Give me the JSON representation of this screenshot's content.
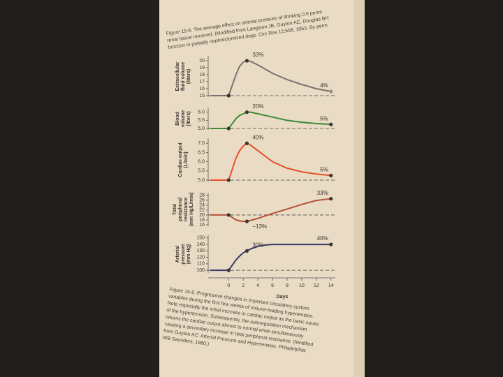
{
  "figure_top_caption": [
    "Figure 15-8. The average effect on arterial pressure of drinking 0.9 perce",
    "renal tissue removed. (Modified from Langston JB, Guyton AC, Douglas BH",
    "function in partially nephrectomized dogs. Circ Res 12:508, 1963. By perm"
  ],
  "chart_data": [
    {
      "type": "line",
      "ylabel": [
        "Extracellular",
        "fluid volume",
        "(liters)"
      ],
      "x": [
        -2.5,
        0,
        0.5,
        1,
        1.5,
        2,
        2.5,
        3,
        4,
        5,
        6,
        8,
        10,
        12,
        14
      ],
      "series": [
        {
          "color": "#7b7170",
          "values": [
            15,
            15,
            16.5,
            18,
            19.2,
            19.8,
            20,
            19.9,
            19.4,
            18.8,
            18.2,
            17.3,
            16.6,
            16.0,
            15.6
          ]
        }
      ],
      "points": [
        {
          "x": 0,
          "y": 15
        },
        {
          "x": 2.5,
          "y": 20,
          "label": "33%"
        },
        {
          "x": 14,
          "y": 15.6,
          "label": "4%"
        }
      ],
      "baseline": 15,
      "xlim": [
        -2.8,
        14.6
      ],
      "ylim": [
        15,
        20.5
      ],
      "yticks": [
        15,
        16,
        17,
        18,
        19,
        20
      ]
    },
    {
      "type": "line",
      "ylabel": [
        "Blood",
        "volume",
        "(liters)"
      ],
      "x": [
        -2.5,
        0,
        0.5,
        1,
        1.5,
        2,
        2.5,
        3,
        4,
        5,
        6,
        8,
        10,
        12,
        14
      ],
      "series": [
        {
          "color": "#3d8a37",
          "values": [
            5,
            5,
            5.3,
            5.6,
            5.8,
            5.9,
            6.0,
            6.0,
            5.9,
            5.8,
            5.7,
            5.5,
            5.38,
            5.3,
            5.25
          ]
        }
      ],
      "points": [
        {
          "x": 0,
          "y": 5
        },
        {
          "x": 2.5,
          "y": 6.0,
          "label": "20%"
        },
        {
          "x": 14,
          "y": 5.25,
          "label": "5%"
        }
      ],
      "baseline": 5,
      "xlim": [
        -2.8,
        14.6
      ],
      "ylim": [
        5,
        6.2
      ],
      "yticks": [
        {
          "value": 5,
          "label": "5.0"
        },
        5.5,
        {
          "value": 6,
          "label": "6.0"
        }
      ]
    },
    {
      "type": "line",
      "ylabel": [
        "Cardiac output",
        "(L/min)"
      ],
      "x": [
        -2.5,
        0,
        0.5,
        1,
        1.5,
        2,
        2.5,
        3,
        4,
        5,
        6,
        8,
        10,
        12,
        14
      ],
      "series": [
        {
          "color": "#e2512b",
          "values": [
            5,
            5,
            5.6,
            6.2,
            6.6,
            6.85,
            7.0,
            6.9,
            6.6,
            6.3,
            6.0,
            5.65,
            5.45,
            5.33,
            5.25
          ]
        }
      ],
      "points": [
        {
          "x": 0,
          "y": 5
        },
        {
          "x": 2.5,
          "y": 7.0,
          "label": "40%"
        },
        {
          "x": 14,
          "y": 5.25,
          "label": "5%"
        }
      ],
      "baseline": 5,
      "xlim": [
        -2.8,
        14.6
      ],
      "ylim": [
        5,
        7.2
      ],
      "yticks": [
        {
          "value": 5,
          "label": "5.0"
        },
        5.5,
        {
          "value": 6,
          "label": "6.0"
        },
        6.5,
        {
          "value": 7,
          "label": "7.0"
        }
      ]
    },
    {
      "type": "line",
      "ylabel": [
        "Total",
        "peripheral",
        "resistance",
        "(mm Hg/L/min)"
      ],
      "x": [
        -2.5,
        0,
        0.5,
        1,
        1.5,
        2,
        2.5,
        3,
        4,
        5,
        6,
        8,
        10,
        12,
        14
      ],
      "series": [
        {
          "color": "#b4503a",
          "values": [
            20,
            20,
            19,
            18,
            17.6,
            17.4,
            17.4,
            17.8,
            18.6,
            19.6,
            20.6,
            22.4,
            24.3,
            25.9,
            26.6
          ]
        }
      ],
      "points": [
        {
          "x": 0,
          "y": 20
        },
        {
          "x": 2.5,
          "y": 17.4,
          "label": "−13%"
        },
        {
          "x": 14,
          "y": 26.6,
          "label": "33%"
        }
      ],
      "baseline": 20,
      "xlim": [
        -2.8,
        14.6
      ],
      "ylim": [
        16,
        28.5
      ],
      "yticks": [
        16,
        18,
        20,
        22,
        24,
        26,
        28
      ]
    },
    {
      "type": "line",
      "ylabel": [
        "Arterial",
        "pressure",
        "(mm Hg)"
      ],
      "x": [
        -2.5,
        0,
        0.5,
        1,
        1.5,
        2,
        2.5,
        3,
        4,
        5,
        6,
        8,
        10,
        12,
        14
      ],
      "series": [
        {
          "color": "#38396a",
          "values": [
            100,
            100,
            108,
            116,
            122,
            127,
            130,
            133,
            137,
            139,
            140,
            140,
            140,
            140,
            140
          ]
        }
      ],
      "points": [
        {
          "x": 0,
          "y": 100
        },
        {
          "x": 2.5,
          "y": 130,
          "label": "30%"
        },
        {
          "x": 14,
          "y": 140,
          "label": "40%"
        }
      ],
      "baseline": 100,
      "xlim": [
        -2.8,
        14.6
      ],
      "ylim": [
        98,
        152
      ],
      "yticks": [
        100,
        110,
        120,
        130,
        140,
        150
      ],
      "xticks": [
        0,
        2,
        4,
        6,
        8,
        10,
        12,
        14
      ],
      "xlabel": "Days"
    }
  ],
  "caption": [
    "Figure 15-9. Progressive changes in important circulatory system",
    "variables during the first few weeks of volume-loading hypertension.",
    "Note especially the initial increase in cardiac output as the basic cause",
    "of the hypertension. Subsequently, the autoregulation mechanism",
    "returns the cardiac output almost to normal while simultaneously",
    "causing a secondary increase in total peripheral resistance. (Modified",
    "from Guyton AC: Arterial Pressure and Hypertension. Philadelphia:",
    "WB Saunders, 1980.)"
  ]
}
